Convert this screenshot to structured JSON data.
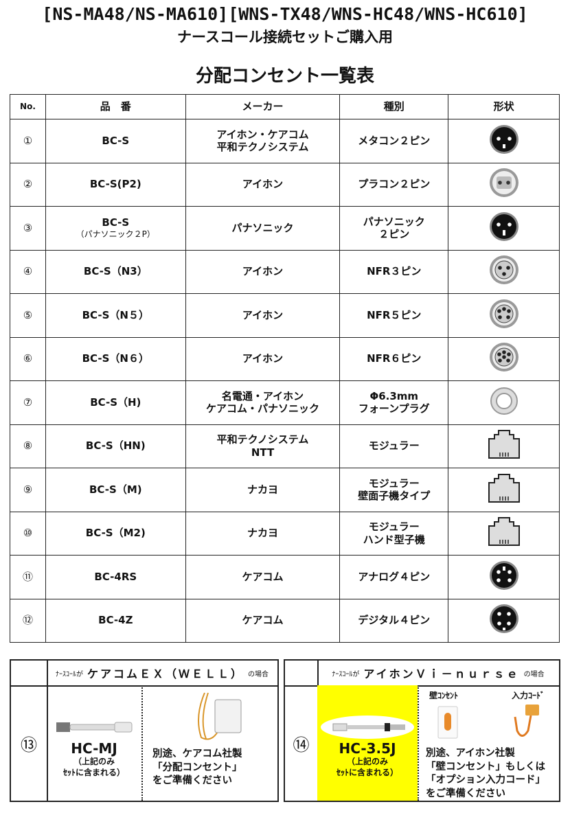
{
  "title_line1": "[NS-MA48/NS-MA610][WNS-TX48/WNS-HC48/WNS-HC610]",
  "title_line2": "ナースコール接続セットご購入用",
  "table_title": "分配コンセント一覧表",
  "headers": [
    "No.",
    "品　番",
    "メーカー",
    "種別",
    "形状"
  ],
  "rows": [
    {
      "no": "①",
      "part": "BC-S",
      "part_sub": "",
      "maker": [
        "アイホン・ケアコム",
        "平和テクノシステム"
      ],
      "type": [
        "メタコン２ピン"
      ],
      "shape": "metacon-2pin-icon"
    },
    {
      "no": "②",
      "part": "BC-S(P2)",
      "part_sub": "",
      "maker": [
        "アイホン"
      ],
      "type": [
        "プラコン２ピン"
      ],
      "shape": "placon-2pin-icon"
    },
    {
      "no": "③",
      "part": "BC-S",
      "part_sub": "（パナソニック２P）",
      "maker": [
        "パナソニック"
      ],
      "type": [
        "パナソニック",
        "２ピン"
      ],
      "shape": "panasonic-2pin-icon"
    },
    {
      "no": "④",
      "part": "BC-S（N3）",
      "part_sub": "",
      "maker": [
        "アイホン"
      ],
      "type": [
        "NFR３ピン"
      ],
      "shape": "nfr-3pin-icon"
    },
    {
      "no": "⑤",
      "part": "BC-S（N５）",
      "part_sub": "",
      "maker": [
        "アイホン"
      ],
      "type": [
        "NFR５ピン"
      ],
      "shape": "nfr-5pin-icon"
    },
    {
      "no": "⑥",
      "part": "BC-S（N６）",
      "part_sub": "",
      "maker": [
        "アイホン"
      ],
      "type": [
        "NFR６ピン"
      ],
      "shape": "nfr-6pin-icon"
    },
    {
      "no": "⑦",
      "part": "BC-S（H)",
      "part_sub": "",
      "maker": [
        "名電通・アイホン",
        "ケアコム・パナソニック"
      ],
      "type": [
        "Φ6.3mm",
        "フォーンプラグ"
      ],
      "shape": "phone-jack-icon"
    },
    {
      "no": "⑧",
      "part": "BC-S（HN)",
      "part_sub": "",
      "maker": [
        "平和テクノシステム",
        "NTT"
      ],
      "type": [
        "モジュラー"
      ],
      "shape": "modular-jack-icon"
    },
    {
      "no": "⑨",
      "part": "BC-S（M)",
      "part_sub": "",
      "maker": [
        "ナカヨ"
      ],
      "type": [
        "モジュラー",
        "壁面子機タイプ"
      ],
      "shape": "modular-jack-icon"
    },
    {
      "no": "⑩",
      "part": "BC-S（M2)",
      "part_sub": "",
      "maker": [
        "ナカヨ"
      ],
      "type": [
        "モジュラー",
        "ハンド型子機"
      ],
      "shape": "modular-jack-icon"
    },
    {
      "no": "⑪",
      "part": "BC-4RS",
      "part_sub": "",
      "maker": [
        "ケアコム"
      ],
      "type": [
        "アナログ４ピン"
      ],
      "shape": "analog-4pin-icon"
    },
    {
      "no": "⑫",
      "part": "BC-4Z",
      "part_sub": "",
      "maker": [
        "ケアコム"
      ],
      "type": [
        "デジタル４ピン"
      ],
      "shape": "digital-4pin-icon"
    }
  ],
  "box13": {
    "no": "⑬",
    "prefix": "ﾅｰｽｺｰﾙが",
    "system": "ケアコムＥＸ（ＷＥＬＬ）",
    "suffix": "の場合",
    "part": "HC-MJ",
    "included": [
      "（上記のみ",
      "ｾｯﾄに含まれる）"
    ],
    "note": [
      "別途、ケアコム社製",
      "「分配コンセント」",
      "をご準備ください"
    ]
  },
  "box14": {
    "no": "⑭",
    "prefix": "ﾅｰｽｺｰﾙが",
    "system": "アイホンＶｉ－ｎｕｒｓｅ",
    "suffix": "の場合",
    "part": "HC-3.5J",
    "included": [
      "（上記のみ",
      "ｾｯﾄに含まれる）"
    ],
    "label_wall": "壁ｺﾝｾﾝﾄ",
    "label_cord": "入力ｺｰﾄﾞ",
    "note": [
      "別途、アイホン社製",
      "「壁コンセント」もしくは",
      "「オプション入力コード」",
      "をご準備ください"
    ],
    "highlight": "#ffff00"
  }
}
